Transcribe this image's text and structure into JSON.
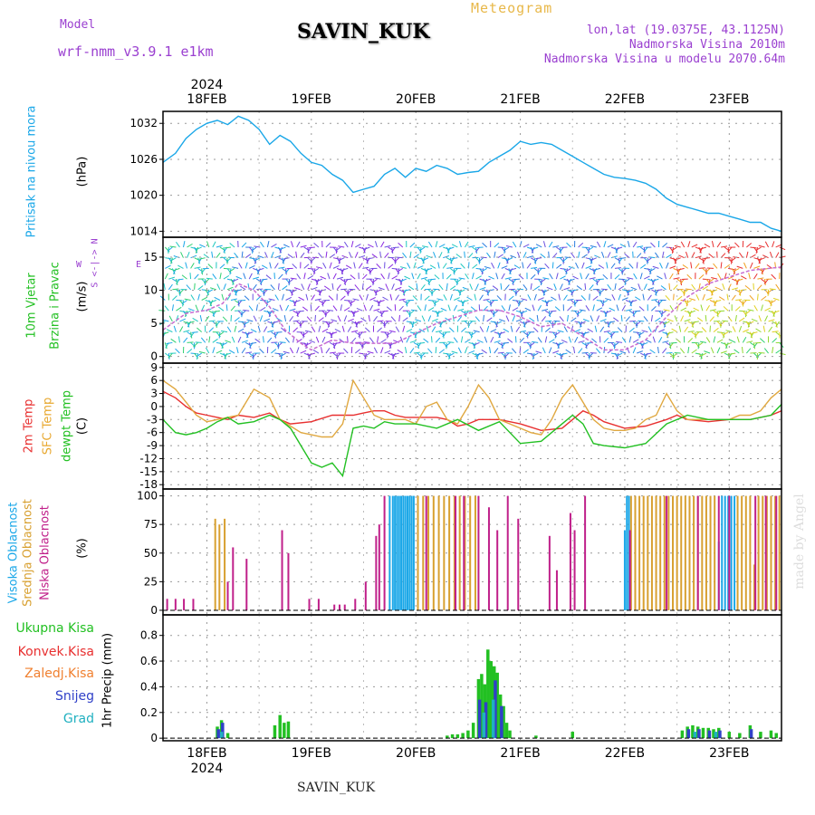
{
  "header": {
    "model_label": "Model",
    "model_name": "wrf-nmm_v3.9.1  e1km",
    "station": "SAVIN_KUK",
    "meteogram_label": "Meteogram",
    "lonlat": "lon,lat (19.0375E, 43.1125N)",
    "elevation": "Nadmorska Visina 2010m",
    "model_elevation": "Nadmorska Visina u modelu 2070.64m",
    "footer_station": "SAVIN_KUK",
    "credit": "made by Angel"
  },
  "time_axis": {
    "year": "2024",
    "x_range_days": [
      17.58,
      23.5
    ],
    "day_labels": [
      {
        "day": 18,
        "label": "18FEB"
      },
      {
        "day": 19,
        "label": "19FEB"
      },
      {
        "day": 20,
        "label": "20FEB"
      },
      {
        "day": 21,
        "label": "21FEB"
      },
      {
        "day": 22,
        "label": "22FEB"
      },
      {
        "day": 23,
        "label": "23FEB"
      }
    ]
  },
  "panel_labels": {
    "pressure": [
      {
        "text": "Pritisak na nivou mora",
        "color": "#1aa7e8"
      }
    ],
    "pressure_unit": "(hPa)",
    "wind": [
      {
        "text": "10m Vjetar",
        "color": "#22c022"
      },
      {
        "text": "Brzina i Pravac",
        "color": "#22c022"
      }
    ],
    "wind_unit": "(m/s)",
    "wind_compass_ns": "S <-|-> N",
    "wind_compass_w": "W",
    "wind_compass_e": "E",
    "temp": [
      {
        "text": "2m Temp",
        "color": "#e83030"
      },
      {
        "text": "SFC Temp",
        "color": "#e8a830"
      },
      {
        "text": "dewpt Temp",
        "color": "#22c022"
      }
    ],
    "temp_unit": "(C)",
    "cloud": [
      {
        "text": "Visoka Oblacnost",
        "color": "#1aa7e8"
      },
      {
        "text": "Srednja Oblacnost",
        "color": "#d8a030"
      },
      {
        "text": "Niska Oblacnost",
        "color": "#c0208a"
      }
    ],
    "cloud_unit": "(%)",
    "precip_unit_label": "1hr Precip (mm)",
    "precip_legend": [
      {
        "text": "Ukupna Kisa",
        "color": "#22c022"
      },
      {
        "text": "Konvek.Kisa",
        "color": "#e83030"
      },
      {
        "text": "Zaledj.Kisa",
        "color": "#f08030"
      },
      {
        "text": "Snijeg",
        "color": "#3040c8"
      },
      {
        "text": "Grad",
        "color": "#20b0c0"
      }
    ]
  },
  "chart_data": [
    {
      "type": "line",
      "panel": "pressure",
      "ylabel": "(hPa)",
      "ylim": [
        1013,
        1034
      ],
      "yticks": [
        1014,
        1020,
        1026,
        1032
      ],
      "series": [
        {
          "color": "#1aa7e8",
          "x": [
            17.58,
            17.7,
            17.8,
            17.9,
            18.0,
            18.1,
            18.2,
            18.3,
            18.4,
            18.5,
            18.6,
            18.7,
            18.8,
            18.9,
            19.0,
            19.1,
            19.2,
            19.3,
            19.4,
            19.5,
            19.6,
            19.7,
            19.8,
            19.9,
            20.0,
            20.1,
            20.2,
            20.3,
            20.4,
            20.5,
            20.6,
            20.7,
            20.8,
            20.9,
            21.0,
            21.1,
            21.2,
            21.3,
            21.4,
            21.5,
            21.6,
            21.7,
            21.8,
            21.9,
            22.0,
            22.1,
            22.2,
            22.3,
            22.4,
            22.5,
            22.6,
            22.7,
            22.8,
            22.9,
            23.0,
            23.1,
            23.2,
            23.3,
            23.4,
            23.5
          ],
          "y": [
            1025.5,
            1027,
            1029.5,
            1031,
            1032,
            1032.5,
            1031.8,
            1033.2,
            1032.5,
            1031,
            1028.5,
            1030,
            1029,
            1027,
            1025.5,
            1025,
            1023.5,
            1022.5,
            1020.5,
            1021,
            1021.5,
            1023.5,
            1024.5,
            1023,
            1024.5,
            1024,
            1025,
            1024.5,
            1023.5,
            1023.8,
            1024,
            1025.5,
            1026.5,
            1027.5,
            1029,
            1028.5,
            1028.8,
            1028.5,
            1027.5,
            1026.5,
            1025.5,
            1024.5,
            1023.5,
            1023,
            1022.8,
            1022.5,
            1022,
            1021,
            1019.5,
            1018.5,
            1018,
            1017.5,
            1017,
            1017,
            1016.5,
            1016,
            1015.5,
            1015.5,
            1014.5,
            1014
          ]
        }
      ]
    },
    {
      "type": "line",
      "panel": "wind",
      "ylabel": "(m/s)",
      "ylim": [
        -1,
        18
      ],
      "yticks": [
        0,
        5,
        10,
        15
      ],
      "series": [
        {
          "color": "#c86cd0",
          "x": [
            17.58,
            17.8,
            18.0,
            18.15,
            18.3,
            18.45,
            18.6,
            18.75,
            18.9,
            19.0,
            19.2,
            19.4,
            19.6,
            19.8,
            20.0,
            20.2,
            20.4,
            20.6,
            20.8,
            21.0,
            21.2,
            21.4,
            21.6,
            21.8,
            22.0,
            22.2,
            22.4,
            22.6,
            22.8,
            23.0,
            23.2,
            23.5
          ],
          "y": [
            4,
            6.5,
            7,
            8,
            11,
            10,
            7.5,
            4,
            2,
            1,
            2.5,
            2,
            2,
            2,
            3.5,
            5,
            6,
            7,
            7,
            6,
            4.5,
            5,
            3,
            1,
            1,
            2.5,
            6,
            9,
            11,
            12,
            13,
            13.5
          ]
        }
      ]
    },
    {
      "type": "line",
      "panel": "temperature",
      "ylabel": "(C)",
      "ylim": [
        -19,
        10
      ],
      "yticks": [
        9,
        6,
        3,
        0,
        -3,
        -6,
        -9,
        -12,
        -15,
        -18
      ],
      "series": [
        {
          "color": "#e83030",
          "x": [
            17.58,
            17.7,
            17.8,
            17.9,
            18.0,
            18.1,
            18.2,
            18.3,
            18.45,
            18.6,
            18.7,
            18.8,
            19.0,
            19.2,
            19.4,
            19.5,
            19.6,
            19.7,
            19.8,
            19.9,
            20.0,
            20.2,
            20.3,
            20.4,
            20.5,
            20.6,
            20.8,
            20.9,
            21.0,
            21.2,
            21.4,
            21.5,
            21.6,
            21.7,
            21.8,
            22.0,
            22.2,
            22.4,
            22.5,
            22.6,
            22.8,
            23.0,
            23.2,
            23.4,
            23.5
          ],
          "y": [
            3.5,
            2,
            0,
            -1.5,
            -2,
            -2.5,
            -3,
            -2,
            -2.5,
            -1.5,
            -3,
            -4,
            -3.5,
            -2,
            -2,
            -1.5,
            -1,
            -1,
            -2,
            -2.5,
            -2.5,
            -2.5,
            -3,
            -4.5,
            -4,
            -3,
            -3,
            -3.5,
            -4,
            -5.5,
            -5,
            -3,
            -1,
            -2,
            -3.5,
            -5,
            -4.5,
            -3,
            -2,
            -3,
            -3.5,
            -3,
            -3,
            -2,
            -1
          ]
        },
        {
          "color": "#e0a840",
          "x": [
            17.58,
            17.7,
            17.8,
            17.9,
            18.0,
            18.1,
            18.2,
            18.3,
            18.45,
            18.6,
            18.7,
            18.8,
            18.9,
            19.0,
            19.1,
            19.2,
            19.3,
            19.4,
            19.5,
            19.6,
            19.7,
            19.8,
            19.9,
            20.0,
            20.1,
            20.2,
            20.3,
            20.4,
            20.5,
            20.6,
            20.7,
            20.8,
            20.9,
            21.0,
            21.1,
            21.2,
            21.3,
            21.4,
            21.5,
            21.6,
            21.7,
            21.8,
            21.9,
            22.0,
            22.1,
            22.2,
            22.3,
            22.4,
            22.5,
            22.6,
            22.7,
            22.8,
            22.9,
            23.0,
            23.1,
            23.2,
            23.3,
            23.4,
            23.5
          ],
          "y": [
            6,
            4,
            1,
            -2,
            -3.5,
            -3,
            -2.5,
            -2,
            4,
            2,
            -3,
            -4.5,
            -6,
            -6.5,
            -7,
            -7,
            -4,
            6,
            2,
            -2,
            -3,
            -3,
            -3,
            -4,
            0,
            1,
            -3,
            -4,
            0,
            5,
            2,
            -3,
            -4,
            -5,
            -6,
            -6.5,
            -3,
            2,
            5,
            1,
            -3,
            -5,
            -5.5,
            -5.5,
            -5,
            -3,
            -2,
            3,
            -1,
            -3,
            -3,
            -3,
            -3,
            -3,
            -2,
            -2,
            -1,
            2,
            4
          ]
        },
        {
          "color": "#22c022",
          "x": [
            17.58,
            17.7,
            17.8,
            17.9,
            18.0,
            18.1,
            18.2,
            18.3,
            18.45,
            18.6,
            18.7,
            18.8,
            18.9,
            19.0,
            19.1,
            19.2,
            19.3,
            19.4,
            19.5,
            19.6,
            19.7,
            19.8,
            20.0,
            20.2,
            20.4,
            20.6,
            20.8,
            21.0,
            21.2,
            21.4,
            21.5,
            21.6,
            21.7,
            21.8,
            22.0,
            22.2,
            22.4,
            22.6,
            22.8,
            23.0,
            23.2,
            23.4,
            23.5
          ],
          "y": [
            -3,
            -6,
            -6.5,
            -6,
            -5,
            -3.5,
            -2.5,
            -4,
            -3.5,
            -2,
            -3,
            -5,
            -9,
            -13,
            -14,
            -13,
            -16,
            -5,
            -4.5,
            -5,
            -3.5,
            -4,
            -4,
            -5,
            -3,
            -5.5,
            -3.5,
            -8.5,
            -8,
            -4,
            -2,
            -4,
            -8.5,
            -9,
            -9.5,
            -8.5,
            -4,
            -2,
            -3,
            -3,
            -3,
            -2,
            0.5
          ]
        }
      ]
    },
    {
      "type": "bar",
      "panel": "cloud",
      "ylabel": "(%)",
      "ylim": [
        -4,
        106
      ],
      "yticks": [
        0,
        25,
        50,
        75,
        100
      ],
      "series": [
        {
          "name": "Visoka Oblacnost",
          "color": "#1aa7e8",
          "x": [
            19.75,
            19.78,
            19.8,
            19.82,
            19.84,
            19.86,
            19.88,
            19.9,
            19.92,
            19.94,
            19.96,
            19.98,
            22.0,
            22.02,
            22.04,
            22.9,
            22.93,
            22.96,
            22.99,
            23.02,
            23.05
          ],
          "values": [
            100,
            100,
            100,
            100,
            100,
            100,
            100,
            100,
            100,
            100,
            100,
            100,
            70,
            100,
            100,
            60,
            100,
            100,
            100,
            100,
            100
          ]
        },
        {
          "name": "Srednja Oblacnost",
          "color": "#d8a030",
          "x": [
            18.08,
            18.12,
            18.17,
            20.02,
            20.07,
            20.12,
            20.17,
            20.22,
            20.27,
            20.32,
            20.37,
            20.42,
            20.47,
            20.52,
            20.57,
            22.06,
            22.1,
            22.14,
            22.18,
            22.22,
            22.26,
            22.3,
            22.34,
            22.38,
            22.42,
            22.46,
            22.5,
            22.54,
            22.58,
            22.62,
            22.66,
            22.7,
            22.74,
            22.78,
            22.82,
            22.86,
            23.08,
            23.12,
            23.16,
            23.2,
            23.24,
            23.28,
            23.32,
            23.36,
            23.4,
            23.44,
            23.48
          ],
          "values": [
            80,
            75,
            80,
            100,
            100,
            100,
            100,
            100,
            100,
            100,
            100,
            100,
            100,
            100,
            100,
            100,
            100,
            100,
            100,
            100,
            100,
            100,
            100,
            100,
            100,
            100,
            100,
            100,
            100,
            100,
            100,
            100,
            100,
            100,
            100,
            100,
            100,
            100,
            100,
            100,
            40,
            100,
            100,
            100,
            100,
            100,
            100
          ]
        },
        {
          "name": "Niska Oblacnost",
          "color": "#c0208a",
          "x": [
            17.62,
            17.7,
            17.78,
            17.87,
            18.2,
            18.25,
            18.38,
            18.72,
            18.78,
            18.98,
            19.07,
            19.22,
            19.27,
            19.32,
            19.42,
            19.52,
            19.62,
            19.65,
            19.7,
            20.1,
            20.38,
            20.46,
            20.6,
            20.7,
            20.78,
            20.88,
            20.98,
            21.28,
            21.35,
            21.48,
            21.52,
            21.62,
            22.05,
            22.4,
            22.7,
            22.9,
            23.0,
            23.25,
            23.35,
            23.45
          ],
          "values": [
            10,
            10,
            10,
            10,
            25,
            55,
            45,
            70,
            50,
            10,
            10,
            5,
            5,
            5,
            10,
            25,
            65,
            75,
            100,
            100,
            100,
            100,
            100,
            90,
            70,
            100,
            80,
            65,
            35,
            85,
            70,
            100,
            70,
            100,
            100,
            100,
            100,
            100,
            100,
            100
          ]
        }
      ]
    },
    {
      "type": "bar",
      "panel": "precipitation",
      "ylabel": "1hr Precip (mm)",
      "ylim": [
        -0.02,
        0.96
      ],
      "yticks": [
        0,
        0.2,
        0.4,
        0.6,
        0.8
      ],
      "series": [
        {
          "name": "Ukupna Kisa",
          "color": "#22c022",
          "x": [
            18.1,
            18.14,
            18.2,
            18.65,
            18.7,
            18.74,
            18.78,
            20.3,
            20.35,
            20.4,
            20.45,
            20.5,
            20.55,
            20.6,
            20.63,
            20.66,
            20.69,
            20.72,
            20.75,
            20.78,
            20.81,
            20.84,
            20.87,
            20.9,
            21.15,
            21.5,
            22.55,
            22.6,
            22.65,
            22.7,
            22.75,
            22.8,
            22.85,
            22.9,
            23.0,
            23.1,
            23.2,
            23.3,
            23.4,
            23.45
          ],
          "values": [
            0.09,
            0.14,
            0.04,
            0.1,
            0.18,
            0.12,
            0.13,
            0.02,
            0.03,
            0.03,
            0.04,
            0.06,
            0.12,
            0.46,
            0.5,
            0.42,
            0.69,
            0.6,
            0.56,
            0.51,
            0.34,
            0.25,
            0.12,
            0.06,
            0.02,
            0.05,
            0.06,
            0.09,
            0.1,
            0.09,
            0.08,
            0.08,
            0.07,
            0.08,
            0.05,
            0.04,
            0.1,
            0.05,
            0.06,
            0.04
          ]
        },
        {
          "name": "Snijeg",
          "color": "#3040c8",
          "x": [
            18.1,
            18.14,
            20.6,
            20.66,
            20.75,
            20.81,
            22.6,
            22.7,
            22.8,
            22.9,
            23.2
          ],
          "values": [
            0.07,
            0.12,
            0.3,
            0.28,
            0.45,
            0.25,
            0.07,
            0.07,
            0.06,
            0.06,
            0.07
          ]
        },
        {
          "name": "Grad",
          "color": "#20b0c0",
          "x": [
            18.12,
            20.63,
            20.72,
            22.65,
            22.85
          ],
          "values": [
            0.05,
            0.2,
            0.3,
            0.05,
            0.05
          ]
        }
      ]
    }
  ]
}
